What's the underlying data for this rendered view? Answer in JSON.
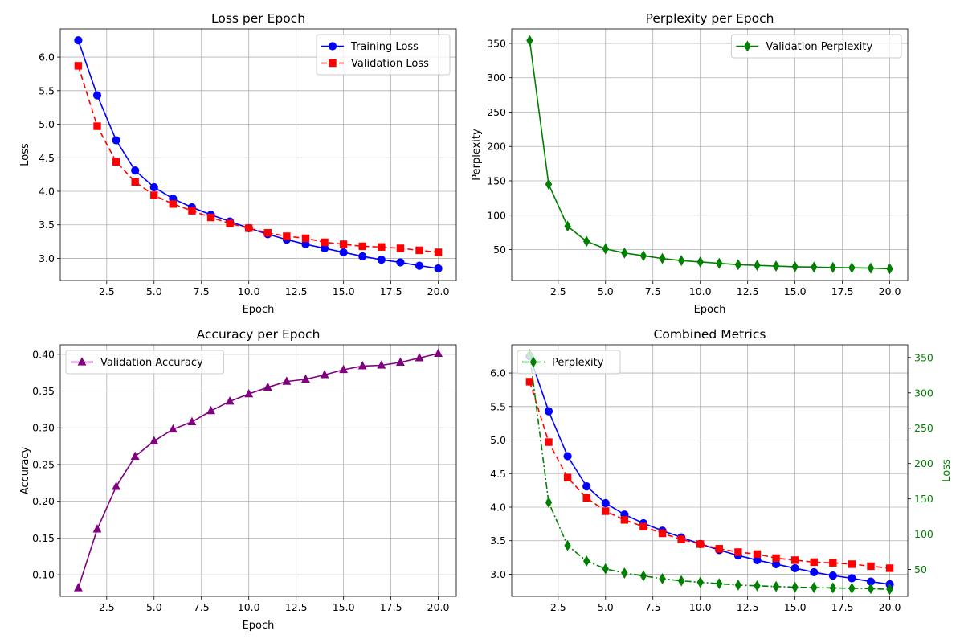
{
  "chart_data": [
    {
      "type": "line",
      "title": "Loss per Epoch",
      "xlabel": "Epoch",
      "ylabel": "Loss",
      "xlim": [
        0.05,
        20.95
      ],
      "ylim": [
        2.67,
        6.42
      ],
      "xticks": [
        2.5,
        5.0,
        7.5,
        10.0,
        12.5,
        15.0,
        17.5,
        20.0
      ],
      "xtick_labels": [
        "2.5",
        "5.0",
        "7.5",
        "10.0",
        "12.5",
        "15.0",
        "17.5",
        "20.0"
      ],
      "yticks": [
        3.0,
        3.5,
        4.0,
        4.5,
        5.0,
        5.5,
        6.0
      ],
      "ytick_labels": [
        "3.0",
        "3.5",
        "4.0",
        "4.5",
        "5.0",
        "5.5",
        "6.0"
      ],
      "grid": true,
      "legend": "top-right",
      "x": [
        1,
        2,
        3,
        4,
        5,
        6,
        7,
        8,
        9,
        10,
        11,
        12,
        13,
        14,
        15,
        16,
        17,
        18,
        19,
        20
      ],
      "series": [
        {
          "name": "Training Loss",
          "color": "#0000ff",
          "marker": "circle",
          "dash": "solid",
          "values": [
            6.25,
            5.43,
            4.76,
            4.31,
            4.06,
            3.89,
            3.76,
            3.65,
            3.55,
            3.45,
            3.36,
            3.28,
            3.21,
            3.15,
            3.09,
            3.03,
            2.98,
            2.94,
            2.89,
            2.85
          ]
        },
        {
          "name": "Validation Loss",
          "color": "#ff0000",
          "marker": "square",
          "dash": "dashed",
          "values": [
            5.87,
            4.97,
            4.44,
            4.14,
            3.94,
            3.81,
            3.71,
            3.61,
            3.52,
            3.45,
            3.38,
            3.33,
            3.3,
            3.24,
            3.21,
            3.18,
            3.17,
            3.15,
            3.12,
            3.09
          ]
        }
      ]
    },
    {
      "type": "line",
      "title": "Perplexity per Epoch",
      "xlabel": "Epoch",
      "ylabel": "Perplexity",
      "xlim": [
        0.05,
        20.95
      ],
      "ylim": [
        5,
        371
      ],
      "xticks": [
        2.5,
        5.0,
        7.5,
        10.0,
        12.5,
        15.0,
        17.5,
        20.0
      ],
      "xtick_labels": [
        "2.5",
        "5.0",
        "7.5",
        "10.0",
        "12.5",
        "15.0",
        "17.5",
        "20.0"
      ],
      "yticks": [
        50,
        100,
        150,
        200,
        250,
        300,
        350
      ],
      "ytick_labels": [
        "50",
        "100",
        "150",
        "200",
        "250",
        "300",
        "350"
      ],
      "grid": true,
      "legend": "top-right",
      "x": [
        1,
        2,
        3,
        4,
        5,
        6,
        7,
        8,
        9,
        10,
        11,
        12,
        13,
        14,
        15,
        16,
        17,
        18,
        19,
        20
      ],
      "series": [
        {
          "name": "Validation Perplexity",
          "color": "#008000",
          "marker": "diamond",
          "dash": "solid",
          "values": [
            354,
            145,
            84,
            62,
            51,
            45,
            41,
            37,
            34,
            32,
            30,
            28,
            27,
            26,
            25,
            24.5,
            24,
            23.5,
            23,
            22
          ]
        }
      ]
    },
    {
      "type": "line",
      "title": "Accuracy per Epoch",
      "xlabel": "Epoch",
      "ylabel": "Accuracy",
      "xlim": [
        0.05,
        20.95
      ],
      "ylim": [
        0.0706,
        0.4129
      ],
      "xticks": [
        2.5,
        5.0,
        7.5,
        10.0,
        12.5,
        15.0,
        17.5,
        20.0
      ],
      "xtick_labels": [
        "2.5",
        "5.0",
        "7.5",
        "10.0",
        "12.5",
        "15.0",
        "17.5",
        "20.0"
      ],
      "yticks": [
        0.1,
        0.15,
        0.2,
        0.25,
        0.3,
        0.35,
        0.4
      ],
      "ytick_labels": [
        "0.10",
        "0.15",
        "0.20",
        "0.25",
        "0.30",
        "0.35",
        "0.40"
      ],
      "grid": true,
      "legend": "top-left",
      "x": [
        1,
        2,
        3,
        4,
        5,
        6,
        7,
        8,
        9,
        10,
        11,
        12,
        13,
        14,
        15,
        16,
        17,
        18,
        19,
        20
      ],
      "series": [
        {
          "name": "Validation Accuracy",
          "color": "#800080",
          "marker": "triangle",
          "dash": "solid",
          "values": [
            0.082,
            0.162,
            0.22,
            0.261,
            0.282,
            0.298,
            0.308,
            0.323,
            0.336,
            0.346,
            0.355,
            0.363,
            0.366,
            0.372,
            0.379,
            0.384,
            0.385,
            0.389,
            0.395,
            0.401
          ]
        }
      ]
    },
    {
      "type": "line",
      "title": "Combined Metrics",
      "xlabel": "",
      "ylabel": "",
      "y2label": "Loss",
      "y2label_color": "#008000",
      "xlim": [
        0.05,
        20.95
      ],
      "ylim": [
        2.67,
        6.42
      ],
      "y2lim": [
        12,
        368
      ],
      "xticks": [
        2.5,
        5.0,
        7.5,
        10.0,
        12.5,
        15.0,
        17.5,
        20.0
      ],
      "xtick_labels": [
        "2.5",
        "5.0",
        "7.5",
        "10.0",
        "12.5",
        "15.0",
        "17.5",
        "20.0"
      ],
      "yticks": [
        3.0,
        3.5,
        4.0,
        4.5,
        5.0,
        5.5,
        6.0
      ],
      "ytick_labels": [
        "3.0",
        "3.5",
        "4.0",
        "4.5",
        "5.0",
        "5.5",
        "6.0"
      ],
      "y2ticks": [
        50,
        100,
        150,
        200,
        250,
        300,
        350
      ],
      "y2tick_labels": [
        "50",
        "100",
        "150",
        "200",
        "250",
        "300",
        "350"
      ],
      "grid": true,
      "legend": "top-left",
      "x": [
        1,
        2,
        3,
        4,
        5,
        6,
        7,
        8,
        9,
        10,
        11,
        12,
        13,
        14,
        15,
        16,
        17,
        18,
        19,
        20
      ],
      "series": [
        {
          "axis": "left",
          "color": "#0000ff",
          "marker": "circle",
          "dash": "solid",
          "values": [
            6.25,
            5.43,
            4.76,
            4.31,
            4.06,
            3.89,
            3.76,
            3.65,
            3.55,
            3.45,
            3.36,
            3.28,
            3.21,
            3.15,
            3.09,
            3.03,
            2.98,
            2.94,
            2.89,
            2.85
          ]
        },
        {
          "axis": "left",
          "color": "#ff0000",
          "marker": "square",
          "dash": "dashed",
          "values": [
            5.87,
            4.97,
            4.44,
            4.14,
            3.94,
            3.81,
            3.71,
            3.61,
            3.52,
            3.45,
            3.38,
            3.33,
            3.3,
            3.24,
            3.21,
            3.18,
            3.17,
            3.15,
            3.12,
            3.09
          ]
        },
        {
          "axis": "right",
          "name": "Perplexity",
          "color": "#008000",
          "marker": "diamond",
          "dash": "dashdot",
          "values": [
            354,
            145,
            84,
            62,
            51,
            45,
            41,
            37,
            34,
            32,
            30,
            28,
            27,
            26,
            25,
            24.5,
            24,
            23.5,
            23,
            22
          ]
        }
      ]
    }
  ]
}
